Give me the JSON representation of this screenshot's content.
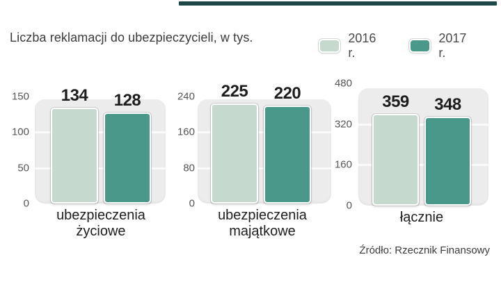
{
  "page": {
    "title": "Liczba reklamacji do ubezpieczycieli, w tys.",
    "source": "Źródło: Rzecznik Finansowy"
  },
  "colors": {
    "series_2016": "#c5d9ce",
    "series_2017": "#499889",
    "plot_background": "#ececec",
    "topbar": "#1d4845"
  },
  "legend": {
    "items": [
      {
        "label": "2016 r.",
        "color": "#c5d9ce"
      },
      {
        "label": "2017 r.",
        "color": "#499889"
      }
    ]
  },
  "chart_data": {
    "type": "bar",
    "title": "Liczba reklamacji do ubezpieczycieli, w tys.",
    "categories": [
      "ubezpieczenia życiowe",
      "ubezpieczenia majątkowe",
      "łącznie"
    ],
    "series": [
      {
        "name": "2016 r.",
        "values": [
          134,
          225,
          359
        ]
      },
      {
        "name": "2017 r.",
        "values": [
          128,
          220,
          348
        ]
      }
    ],
    "legend_position": "top-right",
    "grid": true,
    "source": "Źródło: Rzecznik Finansowy",
    "panels": [
      {
        "category_lines": [
          "ubezpieczenia",
          "życiowe"
        ],
        "ticks": [
          0,
          50,
          100,
          150
        ],
        "ylim": [
          0,
          150
        ],
        "values": [
          134,
          128
        ]
      },
      {
        "category_lines": [
          "ubezpieczenia",
          "majątkowe"
        ],
        "ticks": [
          0,
          80,
          160,
          240
        ],
        "ylim": [
          0,
          240
        ],
        "values": [
          225,
          220
        ]
      },
      {
        "category_lines": [
          "łącznie"
        ],
        "ticks": [
          0,
          160,
          320,
          480
        ],
        "ylim": [
          0,
          480
        ],
        "values": [
          359,
          348
        ]
      }
    ]
  }
}
